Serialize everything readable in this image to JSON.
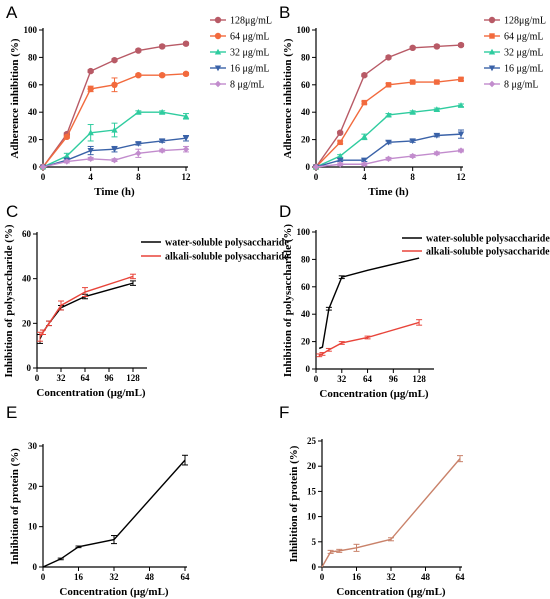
{
  "chart_data": [
    {
      "panel": "A",
      "type": "line",
      "xlabel": "Time (h)",
      "ylabel": "Adherence inhibition (%)",
      "xlim": [
        0,
        12
      ],
      "ylim": [
        0,
        100
      ],
      "xticks": [
        0,
        4,
        8,
        12
      ],
      "yticks": [
        0,
        20,
        40,
        60,
        80,
        100
      ],
      "legend": "top-right",
      "x": [
        0,
        2,
        4,
        6,
        8,
        10,
        12
      ],
      "series": [
        {
          "name": "128μg/mL",
          "color": "#b85a66",
          "marker": "circle",
          "values": [
            0,
            24,
            70,
            78,
            85,
            88,
            90
          ],
          "err": [
            0,
            1,
            1,
            1,
            1,
            1,
            1
          ]
        },
        {
          "name": "64 μg/mL",
          "color": "#f26a3d",
          "marker": "circle",
          "values": [
            0,
            22,
            57,
            60,
            67,
            67,
            68
          ],
          "err": [
            0,
            1,
            2,
            5,
            1,
            1,
            1
          ]
        },
        {
          "name": "32 μg/mL",
          "color": "#2fcc9f",
          "marker": "triangle",
          "values": [
            0,
            8,
            25,
            27,
            40,
            40,
            37
          ],
          "err": [
            0,
            2,
            6,
            5,
            1,
            1,
            2
          ]
        },
        {
          "name": "16 μg/mL",
          "color": "#3a62a8",
          "marker": "triangle-down",
          "values": [
            0,
            5,
            12,
            13,
            17,
            19,
            21
          ],
          "err": [
            0,
            1,
            3,
            2,
            1,
            1,
            2
          ]
        },
        {
          "name": "8 μg/mL",
          "color": "#c28ccd",
          "marker": "diamond",
          "values": [
            0,
            4,
            6,
            5,
            10,
            12,
            13
          ],
          "err": [
            0,
            1,
            1,
            1,
            3,
            1,
            2
          ]
        }
      ]
    },
    {
      "panel": "B",
      "type": "line",
      "xlabel": "Time (h)",
      "ylabel": "Adherence inhibition (%)",
      "xlim": [
        0,
        12
      ],
      "ylim": [
        0,
        100
      ],
      "xticks": [
        0,
        4,
        8,
        12
      ],
      "yticks": [
        0,
        20,
        40,
        60,
        80,
        100
      ],
      "legend": "top-right",
      "x": [
        0,
        2,
        4,
        6,
        8,
        10,
        12
      ],
      "series": [
        {
          "name": "128μg/mL",
          "color": "#b85a66",
          "marker": "circle",
          "values": [
            0,
            25,
            67,
            80,
            87,
            88,
            89
          ],
          "err": [
            0,
            1,
            1,
            1,
            1,
            1,
            1
          ]
        },
        {
          "name": "64 μg/mL",
          "color": "#f26a3d",
          "marker": "square",
          "values": [
            0,
            18,
            47,
            60,
            62,
            62,
            64
          ],
          "err": [
            0,
            1,
            1,
            1,
            1,
            1,
            1
          ]
        },
        {
          "name": "32 μg/mL",
          "color": "#2fcc9f",
          "marker": "triangle",
          "values": [
            0,
            8,
            22,
            38,
            40,
            42,
            45
          ],
          "err": [
            0,
            1,
            2,
            1,
            1,
            1,
            1
          ]
        },
        {
          "name": "16 μg/mL",
          "color": "#3a62a8",
          "marker": "triangle-down",
          "values": [
            0,
            5,
            5,
            18,
            19,
            23,
            24
          ],
          "err": [
            0,
            1,
            1,
            1,
            1,
            1,
            3
          ]
        },
        {
          "name": "8 μg/mL",
          "color": "#c28ccd",
          "marker": "diamond",
          "values": [
            0,
            2,
            2,
            6,
            8,
            10,
            12
          ],
          "err": [
            0,
            1,
            1,
            1,
            1,
            1,
            1
          ]
        }
      ]
    },
    {
      "panel": "C",
      "type": "line",
      "xlabel": "Concentration (μg/mL)",
      "ylabel": "Inhibition of polysaccharide (%)",
      "xlim": [
        0,
        144
      ],
      "ylim": [
        0,
        60
      ],
      "xticks": [
        0,
        32,
        64,
        96,
        128
      ],
      "yticks": [
        0,
        20,
        40,
        60
      ],
      "legend": "top-right",
      "x": [
        4,
        8,
        16,
        32,
        64,
        128
      ],
      "series": [
        {
          "name": "water-soluble polysaccharide",
          "color": "#000000",
          "values": [
            13,
            16,
            20,
            27,
            32,
            38
          ],
          "err": [
            2,
            1,
            1,
            1,
            1,
            1
          ]
        },
        {
          "name": "alkali-soluble polysaccharide",
          "color": "#e8443a",
          "values": [
            14,
            16,
            20,
            28,
            34,
            41
          ],
          "err": [
            2,
            1,
            1,
            2,
            2,
            1
          ]
        }
      ]
    },
    {
      "panel": "D",
      "type": "line",
      "xlabel": "Concentration (μg/mL)",
      "ylabel": "Inhibition of  polysaccharide (%)",
      "xlim": [
        0,
        144
      ],
      "ylim": [
        0,
        100
      ],
      "xticks": [
        0,
        32,
        64,
        96,
        128
      ],
      "yticks": [
        0,
        20,
        40,
        60,
        80,
        100
      ],
      "legend": "top-right",
      "x": [
        4,
        8,
        16,
        32,
        64,
        128
      ],
      "series": [
        {
          "name": "water-soluble polysaccharide",
          "color": "#000000",
          "values": [
            15,
            16,
            44,
            67,
            72,
            81
          ],
          "err": [
            0,
            0,
            1,
            1,
            0,
            0
          ]
        },
        {
          "name": "alkali-soluble polysaccharide",
          "color": "#e8443a",
          "values": [
            10,
            11,
            14,
            19,
            23,
            34
          ],
          "err": [
            1,
            1,
            1,
            1,
            1,
            2
          ]
        }
      ]
    },
    {
      "panel": "E",
      "type": "line",
      "xlabel": "Concentration (μg/mL)",
      "ylabel": "Inhibition of protein (%)",
      "xlim": [
        0,
        64
      ],
      "ylim": [
        0,
        30
      ],
      "xticks": [
        0,
        16,
        32,
        48,
        64
      ],
      "yticks": [
        0,
        10,
        20,
        30
      ],
      "x": [
        0,
        8,
        16,
        32,
        64
      ],
      "series": [
        {
          "color": "#000000",
          "values": [
            0,
            2,
            5,
            6.8,
            26.5
          ],
          "err": [
            0,
            0.2,
            0.2,
            1,
            1.2
          ]
        }
      ]
    },
    {
      "panel": "F",
      "type": "line",
      "xlabel": "Concentration (μg/mL)",
      "ylabel": "Inhibition of protein (%)",
      "xlim": [
        0,
        64
      ],
      "ylim": [
        0,
        25
      ],
      "xticks": [
        0,
        16,
        32,
        48,
        64
      ],
      "yticks": [
        0,
        5,
        10,
        15,
        20,
        25
      ],
      "x": [
        0,
        4,
        8,
        16,
        32,
        64
      ],
      "series": [
        {
          "color": "#c9826a",
          "values": [
            0,
            3,
            3.2,
            3.8,
            5.5,
            21.5
          ],
          "err": [
            0,
            0.3,
            0.3,
            0.7,
            0.3,
            0.6
          ]
        }
      ]
    }
  ]
}
